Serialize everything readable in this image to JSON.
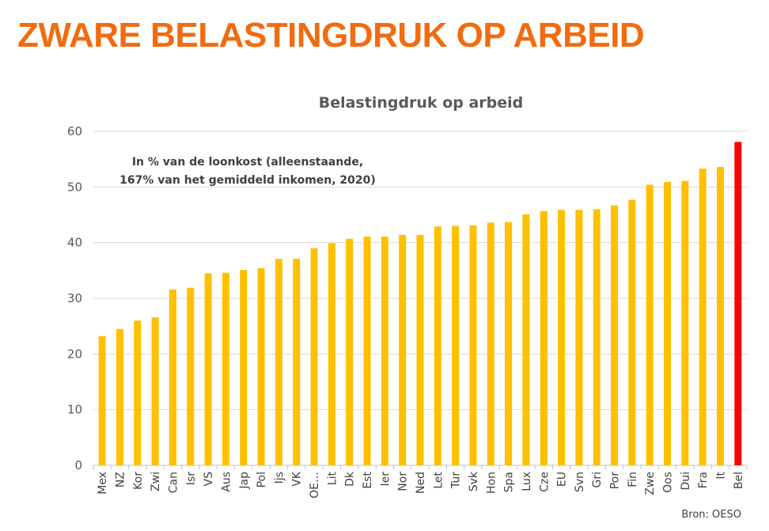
{
  "page": {
    "title": "ZWARE BELASTINGDRUK OP ARBEID"
  },
  "chart_data": {
    "type": "bar",
    "title": "Belastingdruk op arbeid",
    "annotation": [
      "In % van de loonkost (alleenstaande,",
      "167% van het gemiddeld inkomen, 2020)"
    ],
    "source": "Bron: OESO",
    "xlabel": "",
    "ylabel": "",
    "ylim": [
      0,
      60
    ],
    "yticks": [
      0,
      10,
      20,
      30,
      40,
      50,
      60
    ],
    "grid": true,
    "colors": {
      "default": "#ffc000",
      "highlight": "#ff0000"
    },
    "highlight": [
      "Bel"
    ],
    "categories": [
      "Mex",
      "NZ",
      "Kor",
      "Zwi",
      "Can",
      "Isr",
      "VS",
      "Aus",
      "Jap",
      "Pol",
      "Ijs",
      "VK",
      "OE…",
      "Lit",
      "Dk",
      "Est",
      "Ier",
      "Nor",
      "Ned",
      "Let",
      "Tur",
      "Svk",
      "Hon",
      "Spa",
      "Lux",
      "Cze",
      "EU",
      "Svn",
      "Gri",
      "Por",
      "Fin",
      "Zwe",
      "Oos",
      "Dui",
      "Fra",
      "It",
      "Bel"
    ],
    "values": [
      23.2,
      24.5,
      26.0,
      26.6,
      31.6,
      31.9,
      34.5,
      34.6,
      35.1,
      35.4,
      37.1,
      37.1,
      39.0,
      39.9,
      40.7,
      41.1,
      41.1,
      41.4,
      41.4,
      42.9,
      43.0,
      43.1,
      43.6,
      43.7,
      45.1,
      45.7,
      45.9,
      45.9,
      46.0,
      46.7,
      47.7,
      50.4,
      50.9,
      51.1,
      53.3,
      53.6,
      58.1
    ]
  }
}
